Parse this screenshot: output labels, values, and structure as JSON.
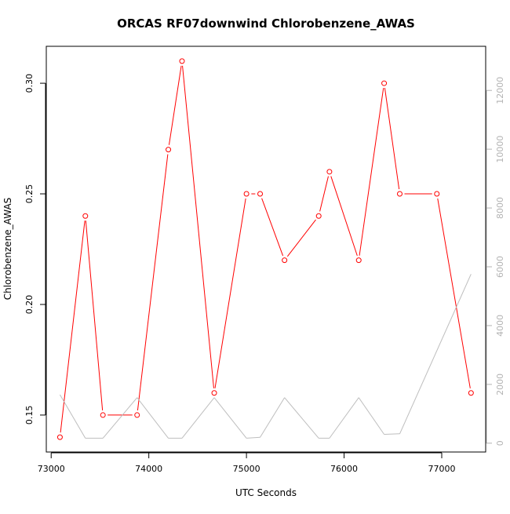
{
  "chart_data": {
    "type": "line",
    "title": "ORCAS RF07downwind Chlorobenzene_AWAS",
    "xlabel": "UTC Seconds",
    "ylabel": "Chlorobenzene_AWAS",
    "y2label": "",
    "xlim": [
      72950,
      77450
    ],
    "ylim": [
      0.1333,
      0.3167
    ],
    "y2lim": [
      -300,
      13500
    ],
    "x_ticks": [
      73000,
      74000,
      75000,
      76000,
      77000
    ],
    "x_tick_labels": [
      "73000",
      "74000",
      "75000",
      "76000",
      "77000"
    ],
    "y_ticks": [
      0.15,
      0.2,
      0.25,
      0.3
    ],
    "y_tick_labels": [
      "0.15",
      "0.20",
      "0.25",
      "0.30"
    ],
    "y2_ticks": [
      0,
      2000,
      4000,
      6000,
      8000,
      10000,
      12000
    ],
    "y2_tick_labels": [
      "0",
      "2000",
      "4000",
      "6000",
      "8000",
      "10000",
      "12000"
    ],
    "grid": false,
    "legend": "none",
    "series": [
      {
        "axis": "left",
        "color": "#ff0000",
        "marker": "open-circle",
        "x": [
          73090,
          73350,
          73530,
          73880,
          74200,
          74340,
          74670,
          75000,
          75140,
          75390,
          75740,
          75850,
          76150,
          76410,
          76570,
          76950,
          77300
        ],
        "values": [
          0.14,
          0.24,
          0.15,
          0.15,
          0.27,
          0.31,
          0.16,
          0.25,
          0.25,
          0.22,
          0.24,
          0.26,
          0.22,
          0.3,
          0.25,
          0.25,
          0.16
        ],
        "segments_broken_after_index": [
          7
        ]
      },
      {
        "axis": "right",
        "color": "#bebebe",
        "marker": "none",
        "x": [
          73090,
          73350,
          73530,
          73880,
          74200,
          74340,
          74670,
          75000,
          75140,
          75390,
          75740,
          75850,
          76150,
          76410,
          76570,
          77300
        ],
        "values": [
          1650,
          170,
          170,
          1550,
          170,
          170,
          1550,
          170,
          200,
          1550,
          170,
          170,
          1550,
          300,
          320,
          5750
        ]
      }
    ]
  }
}
